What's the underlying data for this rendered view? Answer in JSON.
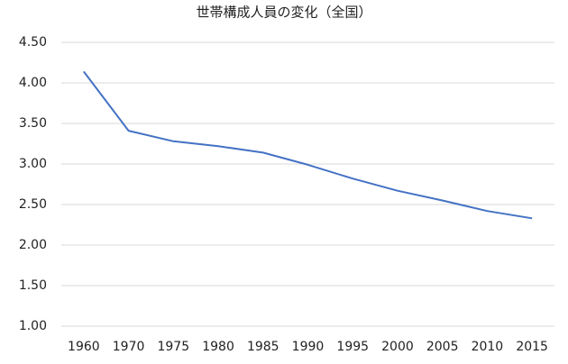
{
  "chart_data": {
    "type": "line",
    "title": "世帯構成人員の変化（全国）",
    "categories": [
      "1960",
      "1970",
      "1975",
      "1980",
      "1985",
      "1990",
      "1995",
      "2000",
      "2005",
      "2010",
      "2015"
    ],
    "values": [
      4.14,
      3.41,
      3.28,
      3.22,
      3.14,
      2.99,
      2.82,
      2.67,
      2.55,
      2.42,
      2.33
    ],
    "color": "#4472c4",
    "ylim": [
      1,
      4.5
    ],
    "yticks": [
      {
        "value": 1,
        "label": "1.00"
      },
      {
        "value": 1.5,
        "label": "1.50"
      },
      {
        "value": 2,
        "label": "2.00"
      },
      {
        "value": 2.5,
        "label": "2.50"
      },
      {
        "value": 3,
        "label": "3.00"
      },
      {
        "value": 3.5,
        "label": "3.50"
      },
      {
        "value": 4,
        "label": "4.00"
      },
      {
        "value": 4.5,
        "label": "4.50"
      }
    ],
    "grid": true
  }
}
